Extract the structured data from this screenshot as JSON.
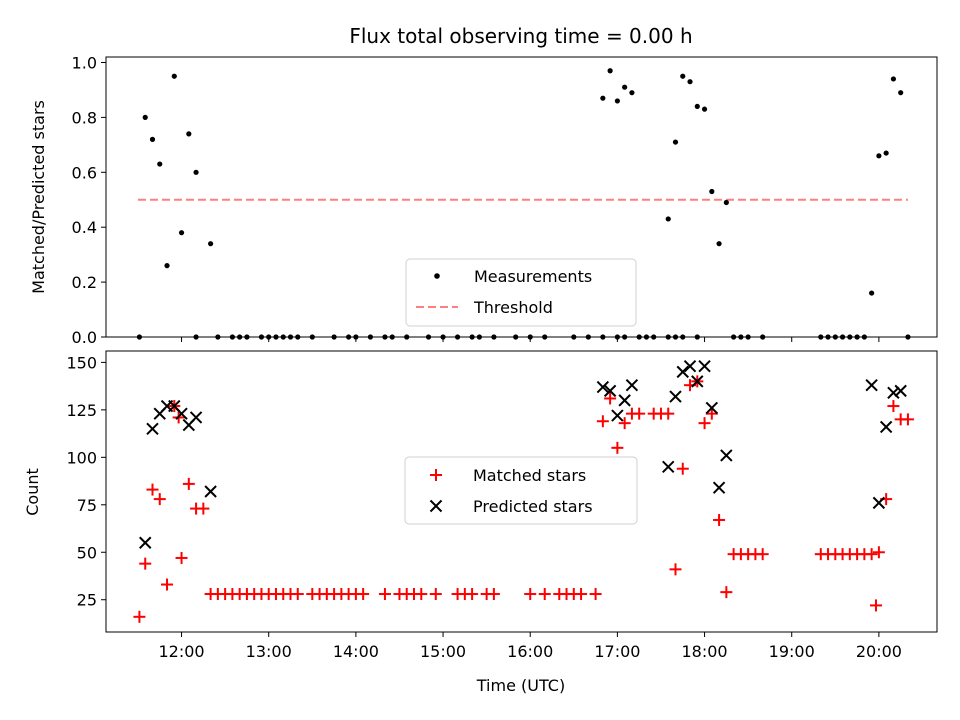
{
  "chart_data": [
    {
      "type": "scatter",
      "title": "Flux total observing time = 0.00 h",
      "xlabel": "",
      "ylabel": "Matched/Predicted stars",
      "ylim": [
        0,
        1.02
      ],
      "yticks": [
        0.0,
        0.2,
        0.4,
        0.6,
        0.8,
        1.0
      ],
      "ytick_labels": [
        "0.0",
        "0.2",
        "0.4",
        "0.6",
        "0.8",
        "1.0"
      ],
      "legend_position": "lower-center",
      "series": [
        {
          "name": "Measurements",
          "marker": "dot",
          "color": "#000000",
          "points": [
            [
              "11:31",
              0
            ],
            [
              "11:35",
              0.8
            ],
            [
              "11:40",
              0.72
            ],
            [
              "11:45",
              0.63
            ],
            [
              "11:50",
              0.26
            ],
            [
              "11:55",
              0.95
            ],
            [
              "12:00",
              0.38
            ],
            [
              "12:05",
              0.74
            ],
            [
              "12:10",
              0.6
            ],
            [
              "12:20",
              0.34
            ],
            [
              "12:10",
              0
            ],
            [
              "12:25",
              0
            ],
            [
              "12:35",
              0
            ],
            [
              "12:40",
              0
            ],
            [
              "12:45",
              0
            ],
            [
              "12:55",
              0
            ],
            [
              "13:00",
              0
            ],
            [
              "13:05",
              0
            ],
            [
              "13:10",
              0
            ],
            [
              "13:15",
              0
            ],
            [
              "13:20",
              0
            ],
            [
              "13:30",
              0
            ],
            [
              "13:45",
              0
            ],
            [
              "13:55",
              0
            ],
            [
              "14:00",
              0
            ],
            [
              "14:10",
              0
            ],
            [
              "14:20",
              0
            ],
            [
              "14:25",
              0
            ],
            [
              "14:35",
              0
            ],
            [
              "14:50",
              0
            ],
            [
              "15:00",
              0
            ],
            [
              "15:10",
              0
            ],
            [
              "15:20",
              0
            ],
            [
              "15:25",
              0
            ],
            [
              "15:35",
              0
            ],
            [
              "15:50",
              0
            ],
            [
              "16:00",
              0
            ],
            [
              "16:10",
              0
            ],
            [
              "16:30",
              0
            ],
            [
              "16:40",
              0
            ],
            [
              "16:50",
              0
            ],
            [
              "17:00",
              0
            ],
            [
              "17:05",
              0
            ],
            [
              "17:15",
              0
            ],
            [
              "17:20",
              0
            ],
            [
              "17:25",
              0
            ],
            [
              "16:50",
              0.87
            ],
            [
              "16:55",
              0.97
            ],
            [
              "17:00",
              0.86
            ],
            [
              "17:05",
              0.91
            ],
            [
              "17:10",
              0.89
            ],
            [
              "17:35",
              0
            ],
            [
              "17:40",
              0
            ],
            [
              "17:45",
              0
            ],
            [
              "17:55",
              0
            ],
            [
              "17:35",
              0.43
            ],
            [
              "17:40",
              0.71
            ],
            [
              "17:45",
              0.95
            ],
            [
              "17:50",
              0.93
            ],
            [
              "17:55",
              0.84
            ],
            [
              "18:00",
              0.83
            ],
            [
              "18:05",
              0.53
            ],
            [
              "18:10",
              0.34
            ],
            [
              "18:15",
              0.49
            ],
            [
              "18:20",
              0
            ],
            [
              "18:25",
              0
            ],
            [
              "18:30",
              0
            ],
            [
              "18:40",
              0
            ],
            [
              "19:20",
              0
            ],
            [
              "19:25",
              0
            ],
            [
              "19:30",
              0
            ],
            [
              "19:35",
              0
            ],
            [
              "19:40",
              0
            ],
            [
              "19:45",
              0
            ],
            [
              "19:50",
              0
            ],
            [
              "19:55",
              0.16
            ],
            [
              "20:00",
              0.66
            ],
            [
              "20:05",
              0.67
            ],
            [
              "20:10",
              0.94
            ],
            [
              "20:15",
              0.89
            ],
            [
              "20:20",
              0
            ]
          ]
        },
        {
          "name": "Threshold",
          "marker": "dashed-line",
          "color": "#ff7f7f",
          "points": [
            [
              "11:30",
              0.5
            ],
            [
              "20:20",
              0.5
            ]
          ]
        }
      ]
    },
    {
      "type": "scatter",
      "xlabel": "Time (UTC)",
      "ylabel": "Count",
      "ylim": [
        8,
        156
      ],
      "yticks": [
        25,
        50,
        75,
        100,
        125,
        150
      ],
      "ytick_labels": [
        "25",
        "50",
        "75",
        "100",
        "125",
        "150"
      ],
      "xticks": [
        "12:00",
        "13:00",
        "14:00",
        "15:00",
        "16:00",
        "17:00",
        "18:00",
        "19:00",
        "20:00"
      ],
      "xlim": [
        "11:08",
        "20:40"
      ],
      "legend_position": "center",
      "series": [
        {
          "name": "Matched stars",
          "marker": "plus",
          "color": "#ff0000",
          "points": [
            [
              "11:31",
              16
            ],
            [
              "11:35",
              44
            ],
            [
              "11:40",
              83
            ],
            [
              "11:45",
              78
            ],
            [
              "11:50",
              33
            ],
            [
              "11:55",
              127
            ],
            [
              "11:58",
              121
            ],
            [
              "12:00",
              47
            ],
            [
              "12:05",
              86
            ],
            [
              "12:10",
              73
            ],
            [
              "12:15",
              73
            ],
            [
              "12:20",
              28
            ],
            [
              "12:25",
              28
            ],
            [
              "12:30",
              28
            ],
            [
              "12:35",
              28
            ],
            [
              "12:40",
              28
            ],
            [
              "12:45",
              28
            ],
            [
              "12:50",
              28
            ],
            [
              "12:55",
              28
            ],
            [
              "13:00",
              28
            ],
            [
              "13:05",
              28
            ],
            [
              "13:10",
              28
            ],
            [
              "13:15",
              28
            ],
            [
              "13:20",
              28
            ],
            [
              "13:30",
              28
            ],
            [
              "13:35",
              28
            ],
            [
              "13:40",
              28
            ],
            [
              "13:45",
              28
            ],
            [
              "13:50",
              28
            ],
            [
              "13:55",
              28
            ],
            [
              "14:00",
              28
            ],
            [
              "14:05",
              28
            ],
            [
              "14:20",
              28
            ],
            [
              "14:30",
              28
            ],
            [
              "14:35",
              28
            ],
            [
              "14:40",
              28
            ],
            [
              "14:45",
              28
            ],
            [
              "14:55",
              28
            ],
            [
              "15:10",
              28
            ],
            [
              "15:15",
              28
            ],
            [
              "15:20",
              28
            ],
            [
              "15:30",
              28
            ],
            [
              "15:35",
              28
            ],
            [
              "16:00",
              28
            ],
            [
              "16:10",
              28
            ],
            [
              "16:20",
              28
            ],
            [
              "16:25",
              28
            ],
            [
              "16:30",
              28
            ],
            [
              "16:35",
              28
            ],
            [
              "16:45",
              28
            ],
            [
              "16:50",
              119
            ],
            [
              "16:55",
              131
            ],
            [
              "17:00",
              105
            ],
            [
              "17:05",
              118
            ],
            [
              "17:10",
              123
            ],
            [
              "17:15",
              123
            ],
            [
              "17:25",
              123
            ],
            [
              "17:30",
              123
            ],
            [
              "17:35",
              123
            ],
            [
              "17:40",
              41
            ],
            [
              "17:45",
              94
            ],
            [
              "17:50",
              138
            ],
            [
              "17:55",
              140
            ],
            [
              "18:00",
              118
            ],
            [
              "18:05",
              123
            ],
            [
              "18:10",
              67
            ],
            [
              "18:15",
              29
            ],
            [
              "18:20",
              49
            ],
            [
              "18:25",
              49
            ],
            [
              "18:30",
              49
            ],
            [
              "18:35",
              49
            ],
            [
              "18:40",
              49
            ],
            [
              "19:20",
              49
            ],
            [
              "19:25",
              49
            ],
            [
              "19:30",
              49
            ],
            [
              "19:35",
              49
            ],
            [
              "19:40",
              49
            ],
            [
              "19:45",
              49
            ],
            [
              "19:50",
              49
            ],
            [
              "19:55",
              49
            ],
            [
              "19:58",
              22
            ],
            [
              "20:00",
              50
            ],
            [
              "20:05",
              78
            ],
            [
              "20:10",
              127
            ],
            [
              "20:15",
              120
            ],
            [
              "20:20",
              120
            ]
          ]
        },
        {
          "name": "Predicted stars",
          "marker": "x",
          "color": "#000000",
          "points": [
            [
              "11:35",
              55
            ],
            [
              "11:40",
              115
            ],
            [
              "11:45",
              123
            ],
            [
              "11:50",
              127
            ],
            [
              "11:55",
              127
            ],
            [
              "12:00",
              123
            ],
            [
              "12:05",
              117
            ],
            [
              "12:10",
              121
            ],
            [
              "12:20",
              82
            ],
            [
              "16:50",
              137
            ],
            [
              "16:55",
              135
            ],
            [
              "17:00",
              122
            ],
            [
              "17:05",
              130
            ],
            [
              "17:10",
              138
            ],
            [
              "17:35",
              95
            ],
            [
              "17:40",
              132
            ],
            [
              "17:45",
              145
            ],
            [
              "17:50",
              148
            ],
            [
              "17:55",
              140
            ],
            [
              "18:00",
              148
            ],
            [
              "18:05",
              126
            ],
            [
              "18:10",
              84
            ],
            [
              "18:15",
              101
            ],
            [
              "19:55",
              138
            ],
            [
              "20:00",
              76
            ],
            [
              "20:05",
              116
            ],
            [
              "20:10",
              134
            ],
            [
              "20:15",
              135
            ]
          ]
        }
      ]
    }
  ]
}
